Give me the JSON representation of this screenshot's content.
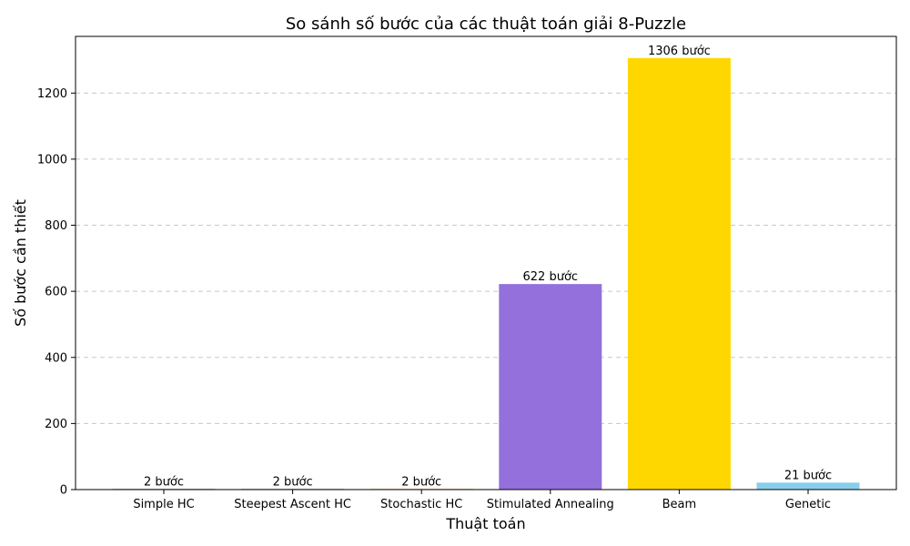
{
  "chart_data": {
    "type": "bar",
    "title": "So sánh số bước của các thuật toán giải 8-Puzzle",
    "xlabel": "Thuật toán",
    "ylabel": "Số bước cần thiết",
    "categories": [
      "Simple HC",
      "Steepest Ascent HC",
      "Stochastic HC",
      "Stimulated Annealing",
      "Beam",
      "Genetic"
    ],
    "values": [
      2,
      2,
      2,
      622,
      1306,
      21
    ],
    "data_labels": [
      "2 bước",
      "2 bước",
      "2 bước",
      "622 bước",
      "1306 bước",
      "21 bước"
    ],
    "colors": [
      "#4682b4",
      "#3cb371",
      "#ffa500",
      "#9370db",
      "#ffd700",
      "#87ceeb"
    ],
    "ylim": [
      0,
      1371.5
    ],
    "yticks": [
      0,
      200,
      400,
      600,
      800,
      1000,
      1200
    ],
    "grid": "y-dashed"
  }
}
